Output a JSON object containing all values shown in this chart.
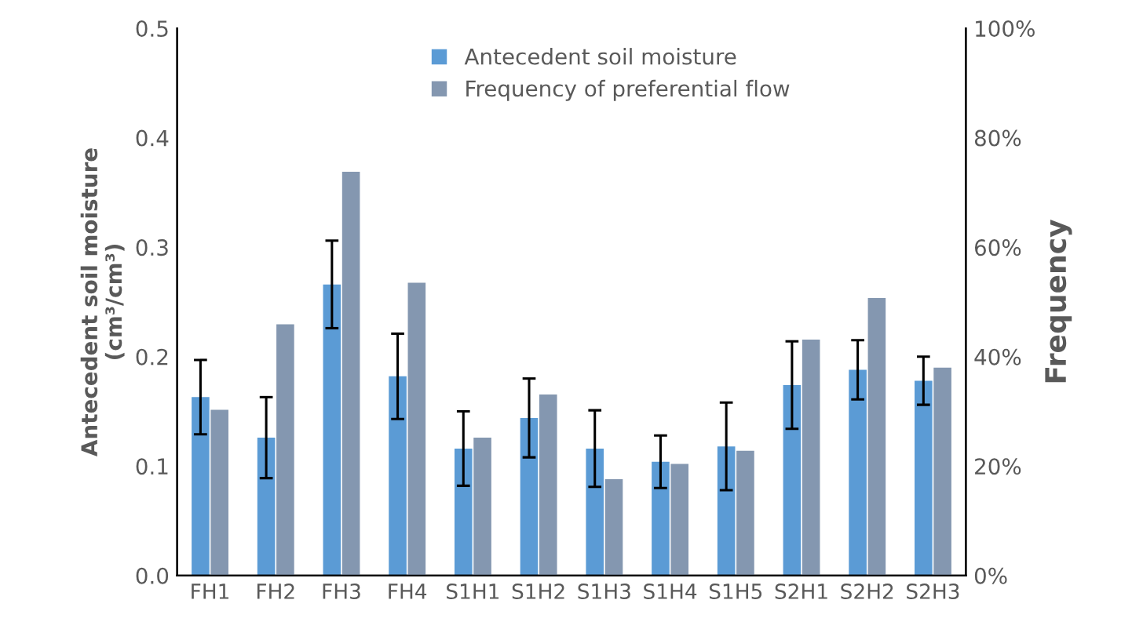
{
  "chart_data": {
    "type": "bar",
    "categories": [
      "FH1",
      "FH2",
      "FH3",
      "FH4",
      "S1H1",
      "S1H2",
      "S1H3",
      "S1H4",
      "S1H5",
      "S2H1",
      "S2H2",
      "S2H3"
    ],
    "ylabel": "Antecedent soil moisture\n(cm³/cm³)",
    "y2label": "Frequency",
    "ylim": [
      0,
      0.5
    ],
    "yticks": [
      {
        "value": 0,
        "label": "0.0"
      },
      0.1,
      0.2,
      0.3,
      0.4,
      0.5
    ],
    "y2lim": [
      0,
      100
    ],
    "y2ticks": [
      {
        "value": 0,
        "label": "0%"
      },
      {
        "value": 20,
        "label": "20%"
      },
      {
        "value": 40,
        "label": "40%"
      },
      {
        "value": 60,
        "label": "60%"
      },
      {
        "value": 80,
        "label": "80%"
      },
      {
        "value": 100,
        "label": "100%"
      }
    ],
    "series": [
      {
        "name": "Antecedent soil moisture",
        "color": "#5b9bd5",
        "values": [
          0.163,
          0.126,
          0.266,
          0.182,
          0.116,
          0.144,
          0.116,
          0.104,
          0.118,
          0.174,
          0.188,
          0.178
        ],
        "errors": [
          0.034,
          0.037,
          0.04,
          0.039,
          0.034,
          0.036,
          0.035,
          0.024,
          0.04,
          0.04,
          0.027,
          0.022
        ]
      },
      {
        "name": "Frequency of preferential flow",
        "color": "#8497b0",
        "axis": "y2",
        "values": [
          30.3,
          45.9,
          73.8,
          53.5,
          25.2,
          33.1,
          17.6,
          20.4,
          22.8,
          43.1,
          50.7,
          38.0
        ]
      }
    ],
    "legend": "top",
    "grid": false
  }
}
